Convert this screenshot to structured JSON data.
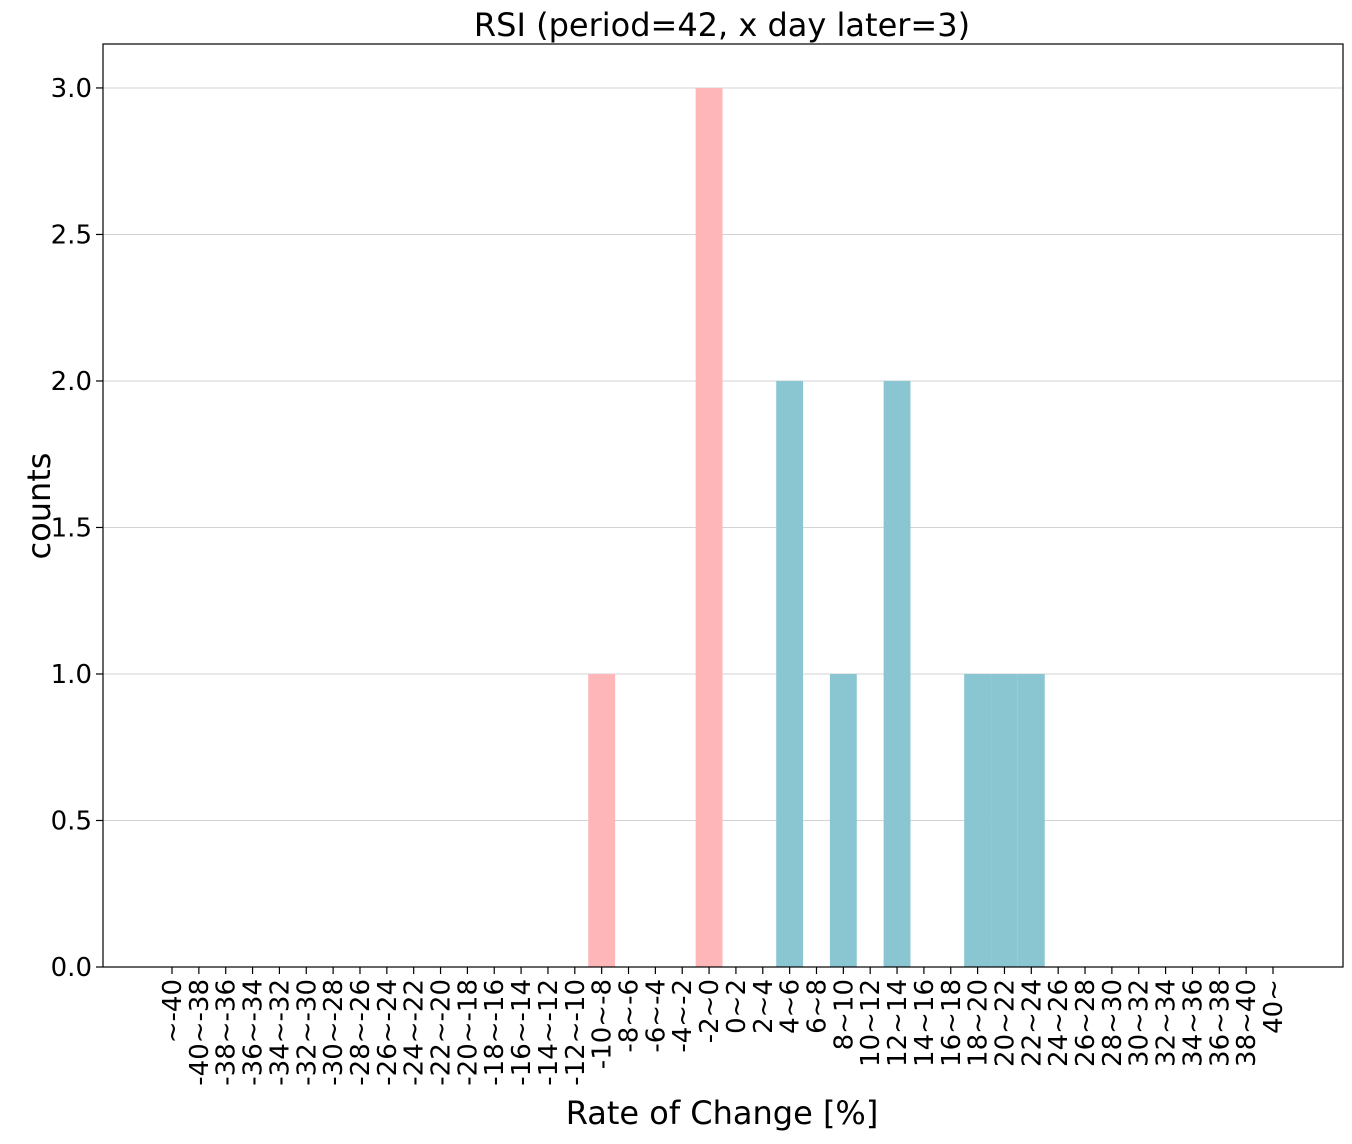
{
  "chart_data": {
    "type": "bar",
    "title": "RSI (period=42, x day later=3)",
    "xlabel": "Rate of Change [%]",
    "ylabel": "counts",
    "ylim": [
      0,
      3.15
    ],
    "yticks": [
      "0.0",
      "0.5",
      "1.0",
      "1.5",
      "2.0",
      "2.5",
      "3.0"
    ],
    "ytick_values": [
      0,
      0.5,
      1.0,
      1.5,
      2.0,
      2.5,
      3.0
    ],
    "grid": "horizontal",
    "categories": [
      "~-40",
      "-40~-38",
      "-38~-36",
      "-36~-34",
      "-34~-32",
      "-32~-30",
      "-30~-28",
      "-28~-26",
      "-26~-24",
      "-24~-22",
      "-22~-20",
      "-20~-18",
      "-18~-16",
      "-16~-14",
      "-14~-12",
      "-12~-10",
      "-10~-8",
      "-8~-6",
      "-6~-4",
      "-4~-2",
      "-2~0",
      "0~2",
      "2~4",
      "4~6",
      "6~8",
      "8~10",
      "10~12",
      "12~14",
      "14~16",
      "16~18",
      "18~20",
      "20~22",
      "22~24",
      "24~26",
      "26~28",
      "28~30",
      "30~32",
      "32~34",
      "34~36",
      "36~38",
      "38~40",
      "40~"
    ],
    "values": [
      0,
      0,
      0,
      0,
      0,
      0,
      0,
      0,
      0,
      0,
      0,
      0,
      0,
      0,
      0,
      0,
      1,
      0,
      0,
      0,
      3,
      0,
      0,
      2,
      0,
      1,
      0,
      2,
      0,
      0,
      1,
      1,
      1,
      0,
      0,
      0,
      0,
      0,
      0,
      0,
      0,
      0
    ],
    "colors": {
      "negative": "#ffb6b9",
      "positive": "#8ac6d1",
      "grid": "#d3d3d3",
      "axis": "#000000"
    }
  }
}
